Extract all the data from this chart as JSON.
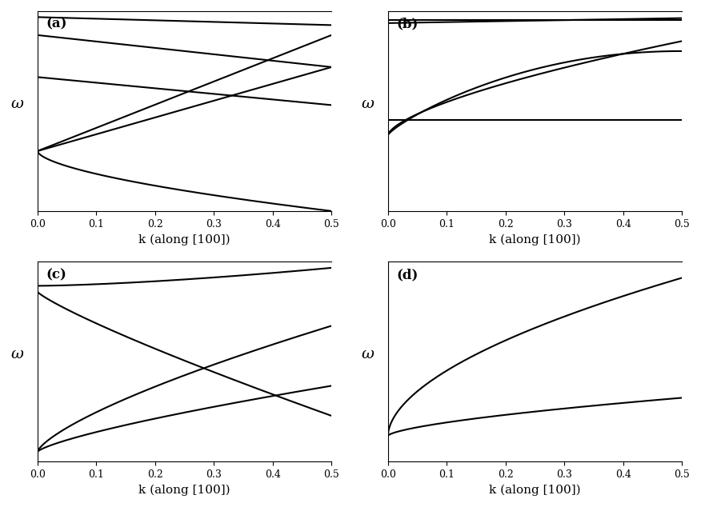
{
  "figsize": [
    8.76,
    6.34
  ],
  "dpi": 100,
  "panels": [
    "(a)",
    "(b)",
    "(c)",
    "(d)"
  ],
  "xlabel": "k (along [100])",
  "ylabel": "ω",
  "k_range": [
    0.0,
    0.5
  ],
  "background_color": "#ffffff",
  "line_color": "#000000",
  "line_width": 1.5,
  "tick_fontsize": 9,
  "label_fontsize": 11,
  "panel_label_fontsize": 12,
  "xticks": [
    0.0,
    0.1,
    0.2,
    0.3,
    0.4,
    0.5
  ]
}
